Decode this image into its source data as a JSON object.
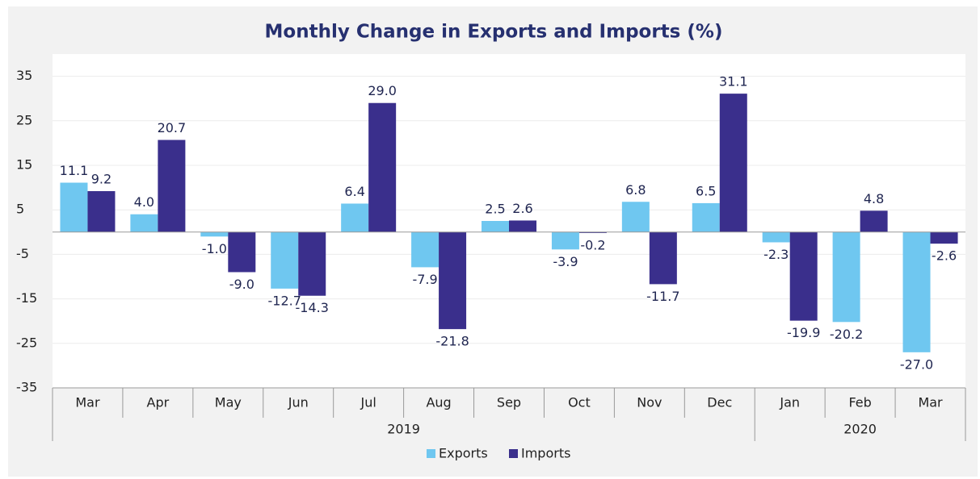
{
  "chart_data": {
    "type": "bar",
    "title": "Monthly Change in Exports and Imports (%)",
    "categories": [
      "Mar",
      "Apr",
      "May",
      "Jun",
      "Jul",
      "Aug",
      "Sep",
      "Oct",
      "Nov",
      "Dec",
      "Jan",
      "Feb",
      "Mar"
    ],
    "groups": [
      {
        "label": "2019",
        "count": 10
      },
      {
        "label": "2020",
        "count": 3
      }
    ],
    "series": [
      {
        "name": "Exports",
        "color": "#6fc7f0",
        "values": [
          11.1,
          4.0,
          -1.0,
          -12.7,
          6.4,
          -7.9,
          2.5,
          -3.9,
          6.8,
          6.5,
          -2.3,
          -20.2,
          -27.0
        ],
        "value_labels": [
          "11.1",
          "4.0",
          "-1.0",
          "-12.7",
          "6.4",
          "-7.9",
          "2.5",
          "-3.9",
          "6.8",
          "6.5",
          "-2.3",
          "-20.2",
          "-27.0"
        ]
      },
      {
        "name": "Imports",
        "color": "#3a2f8c",
        "values": [
          9.2,
          20.7,
          -9.0,
          -14.3,
          29.0,
          -21.8,
          2.6,
          -0.2,
          -11.7,
          31.1,
          -19.9,
          4.8,
          -2.6
        ],
        "value_labels": [
          "9.2",
          "20.7",
          "-9.0",
          "-14.3",
          "29.0",
          "-21.8",
          "2.6",
          "-0.2",
          "-11.7",
          "31.1",
          "-19.9",
          "4.8",
          "-2.6"
        ]
      }
    ],
    "ylim": [
      -35,
      40
    ],
    "yticks": [
      35,
      25,
      15,
      5,
      -5,
      -15,
      -25,
      -35
    ],
    "grid": true,
    "legend": "bottom"
  }
}
